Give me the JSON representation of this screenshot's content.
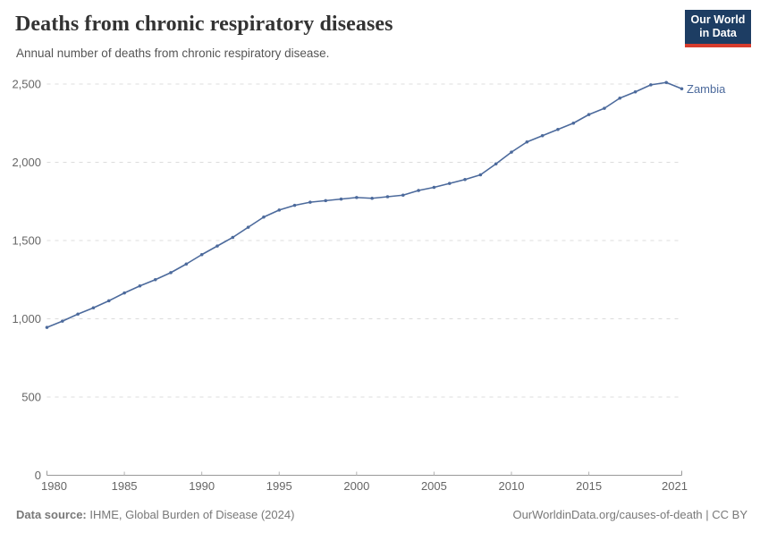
{
  "header": {
    "title": "Deaths from chronic respiratory diseases",
    "subtitle": "Annual number of deaths from chronic respiratory disease.",
    "logo": {
      "line1": "Our World",
      "line2": "in Data"
    }
  },
  "chart_data": {
    "type": "line",
    "title": "Deaths from chronic respiratory diseases",
    "xlabel": "",
    "ylabel": "",
    "xlim": [
      1980,
      2021
    ],
    "ylim": [
      0,
      2500
    ],
    "grid": "horizontal-dashed",
    "legend_position": "end-of-line",
    "x_ticks": [
      {
        "year": 1980,
        "label": "1980"
      },
      {
        "year": 1985,
        "label": "1985"
      },
      {
        "year": 1990,
        "label": "1990"
      },
      {
        "year": 1995,
        "label": "1995"
      },
      {
        "year": 2000,
        "label": "2000"
      },
      {
        "year": 2005,
        "label": "2005"
      },
      {
        "year": 2010,
        "label": "2010"
      },
      {
        "year": 2015,
        "label": "2015"
      },
      {
        "year": 2021,
        "label": "2021"
      }
    ],
    "y_ticks": [
      {
        "value": 0,
        "label": "0"
      },
      {
        "value": 500,
        "label": "500"
      },
      {
        "value": 1000,
        "label": "1,000"
      },
      {
        "value": 1500,
        "label": "1,500"
      },
      {
        "value": 2000,
        "label": "2,000"
      },
      {
        "value": 2500,
        "label": "2,500"
      }
    ],
    "series": [
      {
        "name": "Zambia",
        "end_label": "Zambia",
        "color": "#4C6A9C",
        "x": [
          1980,
          1981,
          1982,
          1983,
          1984,
          1985,
          1986,
          1987,
          1988,
          1989,
          1990,
          1991,
          1992,
          1993,
          1994,
          1995,
          1996,
          1997,
          1998,
          1999,
          2000,
          2001,
          2002,
          2003,
          2004,
          2005,
          2006,
          2007,
          2008,
          2009,
          2010,
          2011,
          2012,
          2013,
          2014,
          2015,
          2016,
          2017,
          2018,
          2019,
          2020,
          2021
        ],
        "values": [
          945,
          985,
          1030,
          1070,
          1115,
          1165,
          1210,
          1250,
          1295,
          1350,
          1410,
          1465,
          1520,
          1585,
          1650,
          1695,
          1725,
          1745,
          1755,
          1765,
          1775,
          1770,
          1780,
          1790,
          1820,
          1840,
          1865,
          1890,
          1920,
          1990,
          2065,
          2130,
          2170,
          2210,
          2250,
          2305,
          2345,
          2410,
          2450,
          2495,
          2510,
          2470
        ]
      }
    ]
  },
  "footer": {
    "source_label": "Data source:",
    "source_value": "IHME, Global Burden of Disease (2024)",
    "link": "OurWorldinData.org/causes-of-death | CC BY"
  },
  "colors": {
    "line": "#4C6A9C",
    "grid": "#dcdcdc",
    "axis": "#999999",
    "tick": "#b3b3b3",
    "tick_text": "#666666",
    "logo_bg": "#1d3d63",
    "logo_accent": "#d73c2d"
  }
}
